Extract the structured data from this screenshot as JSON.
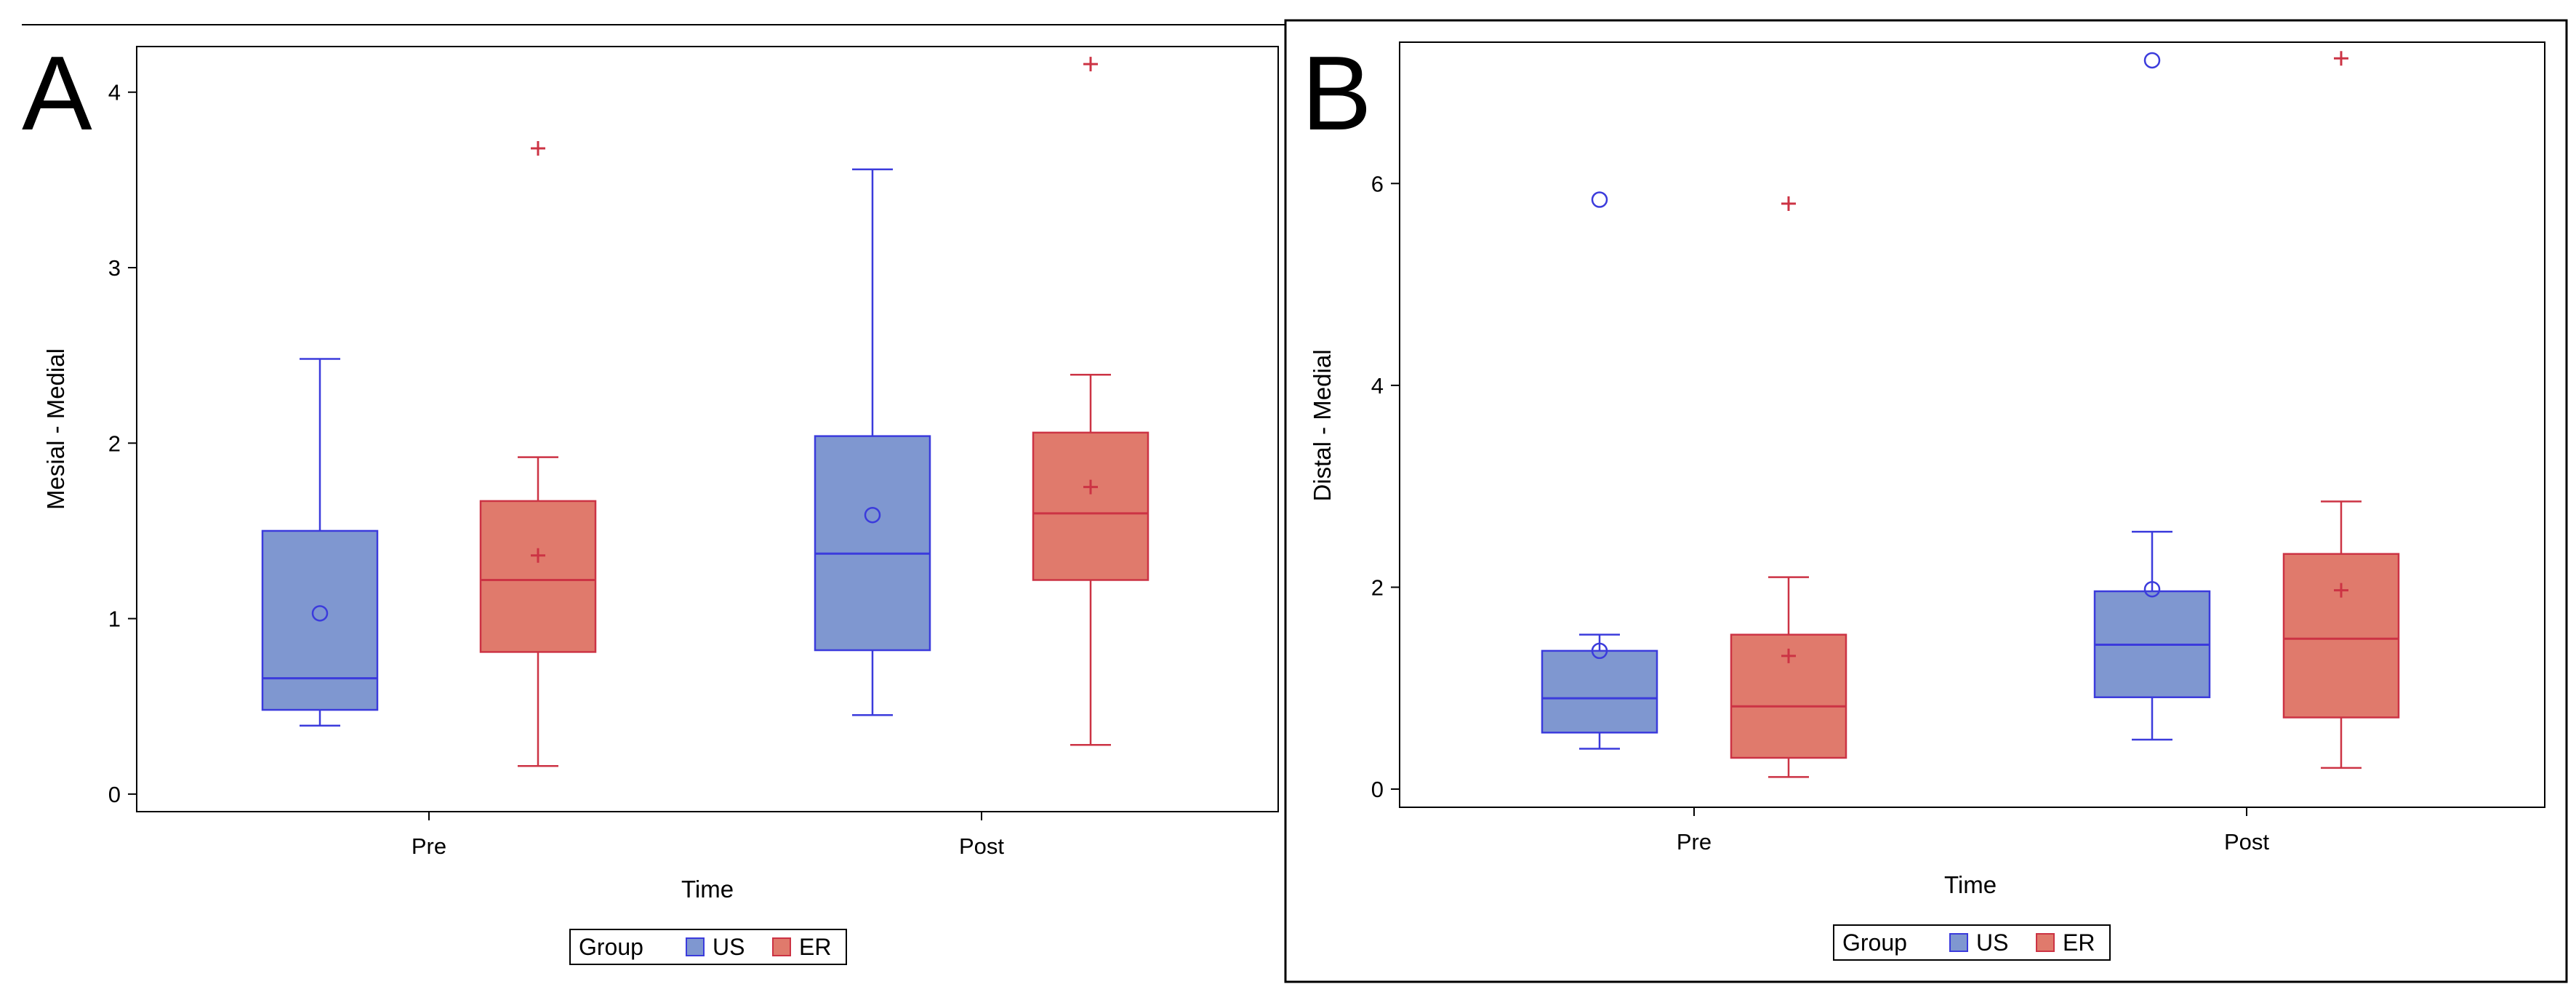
{
  "chart_data": [
    {
      "type": "box",
      "panel_label": "A",
      "xlabel": "Time",
      "ylabel": "Mesial - Medial",
      "categories": [
        "Pre",
        "Post"
      ],
      "ylim": [
        -0.1,
        4.26
      ],
      "yticks": [
        "0",
        "1",
        "2",
        "3",
        "4"
      ],
      "legend": {
        "title": "Group",
        "entries": [
          "US",
          "ER"
        ],
        "position": "bottom-center"
      },
      "series": [
        {
          "name": "US",
          "color": "#7f97d0",
          "stroke": "#3b3bdc",
          "mean_marker": "circle",
          "boxes": [
            {
              "category": "Pre",
              "min": 0.39,
              "q1": 0.48,
              "median": 0.66,
              "q3": 1.5,
              "max": 2.48,
              "mean": 1.03,
              "outliers": []
            },
            {
              "category": "Post",
              "min": 0.45,
              "q1": 0.82,
              "median": 1.37,
              "q3": 2.04,
              "max": 3.56,
              "mean": 1.59,
              "outliers": []
            }
          ]
        },
        {
          "name": "ER",
          "color": "#e07a6c",
          "stroke": "#cc3344",
          "mean_marker": "plus",
          "boxes": [
            {
              "category": "Pre",
              "min": 0.16,
              "q1": 0.81,
              "median": 1.22,
              "q3": 1.67,
              "max": 1.92,
              "mean": 1.36,
              "outliers": [
                3.68
              ]
            },
            {
              "category": "Post",
              "min": 0.28,
              "q1": 1.22,
              "median": 1.6,
              "q3": 2.06,
              "max": 2.39,
              "mean": 1.75,
              "outliers": [
                4.16
              ]
            }
          ]
        }
      ]
    },
    {
      "type": "box",
      "panel_label": "B",
      "xlabel": "Time",
      "ylabel": "Distal - Medial",
      "categories": [
        "Pre",
        "Post"
      ],
      "ylim": [
        -0.18,
        7.4
      ],
      "yticks": [
        "0",
        "2",
        "4",
        "6"
      ],
      "legend": {
        "title": "Group",
        "entries": [
          "US",
          "ER"
        ],
        "position": "bottom-center"
      },
      "series": [
        {
          "name": "US",
          "color": "#7f97d0",
          "stroke": "#3b3bdc",
          "mean_marker": "circle",
          "boxes": [
            {
              "category": "Pre",
              "min": 0.4,
              "q1": 0.56,
              "median": 0.9,
              "q3": 1.37,
              "max": 1.53,
              "mean": 1.37,
              "outliers": [
                5.84
              ]
            },
            {
              "category": "Post",
              "min": 0.49,
              "q1": 0.91,
              "median": 1.43,
              "q3": 1.96,
              "max": 2.55,
              "mean": 1.98,
              "outliers": [
                7.22
              ]
            }
          ]
        },
        {
          "name": "ER",
          "color": "#e07a6c",
          "stroke": "#cc3344",
          "mean_marker": "plus",
          "boxes": [
            {
              "category": "Pre",
              "min": 0.12,
              "q1": 0.31,
              "median": 0.82,
              "q3": 1.53,
              "max": 2.1,
              "mean": 1.32,
              "outliers": [
                5.8
              ]
            },
            {
              "category": "Post",
              "min": 0.21,
              "q1": 0.71,
              "median": 1.49,
              "q3": 2.33,
              "max": 2.85,
              "mean": 1.97,
              "outliers": [
                7.24
              ]
            }
          ]
        }
      ]
    }
  ]
}
